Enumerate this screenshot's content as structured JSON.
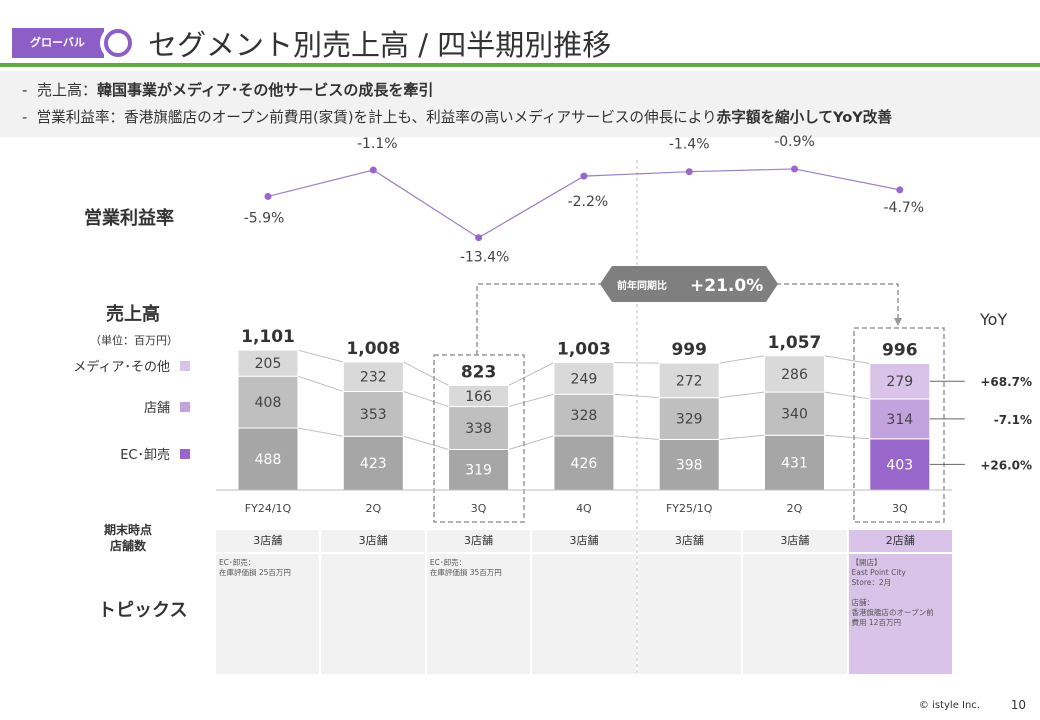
{
  "header": {
    "badge": "グローバル",
    "title": "セグメント別売上高 / 四半期別推移"
  },
  "summary": {
    "line1_prefix": "-",
    "line1_label": "売上高：",
    "line1_bold": "韓国事業がメディア･その他サービスの成長を牽引",
    "line2_prefix": "-",
    "line2_label": "営業利益率：",
    "line2_text": "香港旗艦店のオープン前費用(家賃)を計上も、利益率の高いメディアサービスの伸長により",
    "line2_bold": "赤字額を縮小してYoY改善"
  },
  "labels": {
    "margin": "営業利益率",
    "sales": "売上高",
    "unit": "（単位：百万円）",
    "stores": "期末時点\n店舗数",
    "topics": "トピックス",
    "yoy_header": "YoY",
    "yoy_badge_label": "前年同期比",
    "yoy_badge_value": "+21.0%"
  },
  "colors": {
    "accent": "#8e5ec7",
    "green": "#5aab47",
    "grey_dark": "#a6a6a6",
    "grey_mid": "#bfbfbf",
    "grey_light": "#d9d9d9",
    "purple_dark": "#9966cc",
    "purple_mid": "#c3a3de",
    "purple_light": "#d9c3e9"
  },
  "chart_data": [
    {
      "type": "line",
      "title": "営業利益率",
      "categories": [
        "FY24/1Q",
        "2Q",
        "3Q",
        "4Q",
        "FY25/1Q",
        "2Q",
        "3Q"
      ],
      "values": [
        -5.9,
        -1.1,
        -13.4,
        -2.2,
        -1.4,
        -0.9,
        -4.7
      ],
      "value_labels": [
        "-5.9%",
        "-1.1%",
        "-13.4%",
        "-2.2%",
        "-1.4%",
        "-0.9%",
        "-4.7%"
      ]
    },
    {
      "type": "bar",
      "stacked": true,
      "title": "売上高",
      "unit": "（単位：百万円）",
      "categories": [
        "FY24/1Q",
        "2Q",
        "3Q",
        "4Q",
        "FY25/1Q",
        "2Q",
        "3Q"
      ],
      "totals": [
        "1,101",
        "1,008",
        "823",
        "1,003",
        "999",
        "1,057",
        "996"
      ],
      "series": [
        {
          "name": "EC･卸売",
          "values": [
            488,
            423,
            319,
            426,
            398,
            431,
            403
          ],
          "yoy": "+26.0%"
        },
        {
          "name": "店舗",
          "values": [
            408,
            353,
            338,
            328,
            329,
            340,
            314
          ],
          "yoy": "-7.1%"
        },
        {
          "name": "メディア･その他",
          "values": [
            205,
            232,
            166,
            249,
            272,
            286,
            279
          ],
          "yoy": "+68.7%"
        }
      ],
      "legend": [
        "メディア･その他",
        "店舗",
        "EC･卸売"
      ],
      "legend_position": "left"
    }
  ],
  "stores": [
    "3店舗",
    "3店舗",
    "3店舗",
    "3店舗",
    "3店舗",
    "3店舗",
    "2店舗"
  ],
  "topics": [
    "EC･卸売：\n在庫評価損 25百万円",
    "",
    "EC･卸売：\n在庫評価損 35百万円",
    "",
    "",
    "",
    "【開店】\nEast Point City\nStore：2月\n\n店舗：\n香港旗艦店のオープン前\n費用 12百万円"
  ],
  "footer": {
    "copyright": "©  istyle Inc.",
    "page": "10"
  }
}
